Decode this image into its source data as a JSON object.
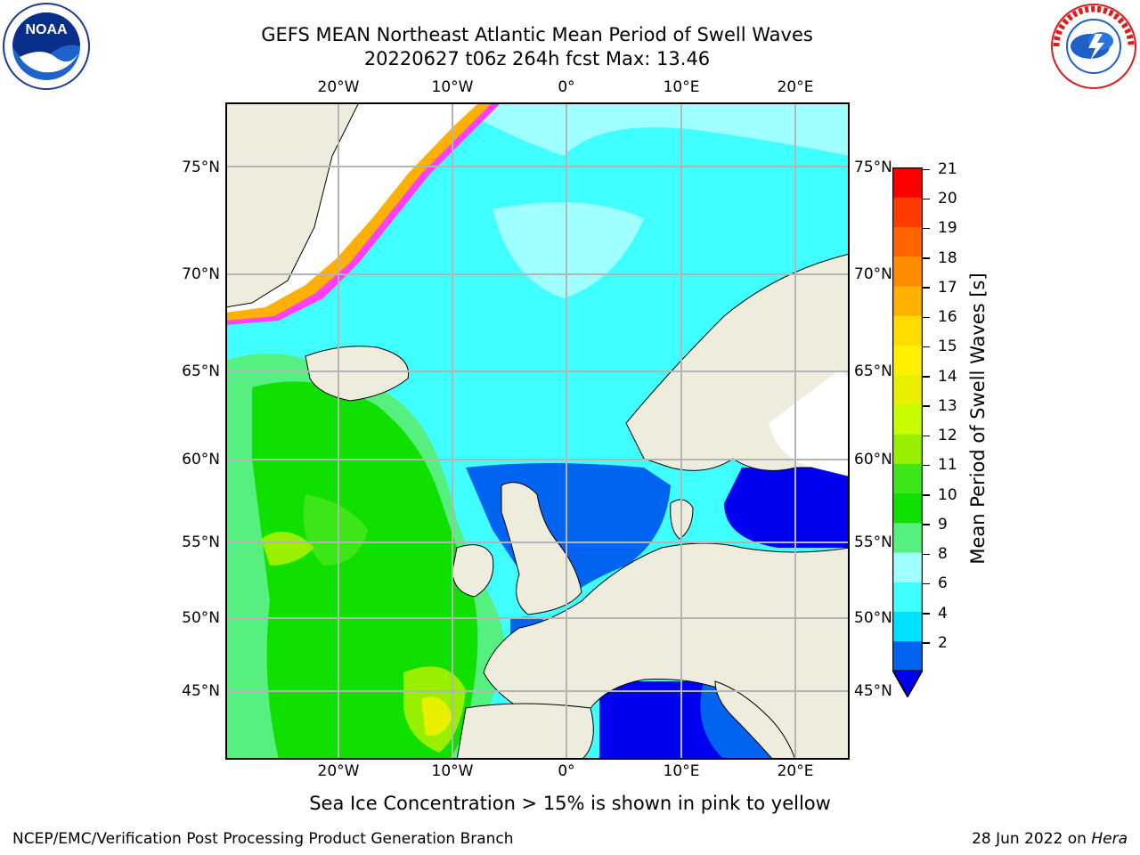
{
  "header": {
    "title_line1": "GEFS MEAN Northeast Atlantic Mean Period of Swell Waves",
    "title_line2": "20220627 t06z 264h fcst   Max: 13.46"
  },
  "map": {
    "lon_labels": [
      "20°W",
      "10°W",
      "0°",
      "10°E",
      "20°E"
    ],
    "lat_labels": [
      "75°N",
      "70°N",
      "65°N",
      "60°N",
      "55°N",
      "50°N",
      "45°N"
    ],
    "colors": {
      "land": "#eeecdc",
      "ice_free_land": "#ffffff",
      "grid": "#b4b4b4"
    }
  },
  "colorbar": {
    "title": "Mean Period of Swell Waves [s]",
    "ticks": [
      "21",
      "20",
      "19",
      "18",
      "17",
      "16",
      "15",
      "14",
      "13",
      "12",
      "11",
      "10",
      "9",
      "8",
      "6",
      "4",
      "2"
    ],
    "colors": [
      "#0064f0",
      "#00e0ff",
      "#40ffff",
      "#a0ffff",
      "#55f080",
      "#10e000",
      "#3ce618",
      "#98f000",
      "#c8fc00",
      "#e8f000",
      "#fff000",
      "#ffdc00",
      "#ffb000",
      "#ff8c00",
      "#ff6400",
      "#ff3c00",
      "#ff0000"
    ],
    "under_color": "#0000f0"
  },
  "ice_note": "Sea Ice Concentration > 15% is shown in pink to yellow",
  "footer": {
    "left": "NCEP/EMC/Verification Post Processing Product Generation Branch",
    "right_date": "28 Jun 2022 on ",
    "right_host": "Hera"
  },
  "logos": {
    "left": "noaa-logo",
    "right": "national-weather-service-logo",
    "left_text": "NOAA",
    "right_text": "NATIONAL WEATHER SERVICE"
  }
}
